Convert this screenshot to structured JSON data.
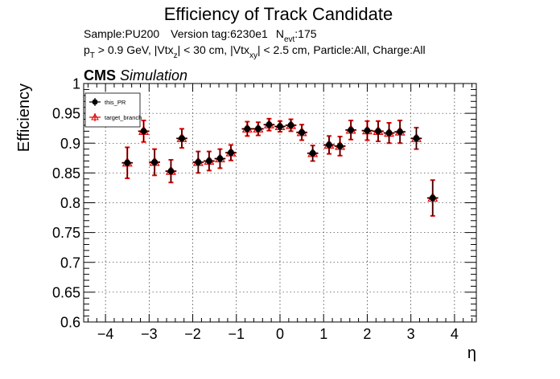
{
  "chart_data": {
    "type": "scatter",
    "title": "Efficiency of Track Candidate",
    "info": {
      "sample": "Sample:PU200",
      "version": "Version tag:6230e1",
      "nevt_prefix": "N",
      "nevt_sub": "evt",
      "nevt_value": ":175",
      "pt_prefix": "p",
      "pt_sub": "T",
      "pt_cut": " > 0.9 GeV, |Vtx",
      "vtxz_sub": "z",
      "vtxz_cut": "| < 30 cm, |Vtx",
      "vtxxy_sub": "xy",
      "vtxxy_cut": "| < 2.5 cm, Particle:All, Charge:All"
    },
    "cms_label": "CMS",
    "sim_label": "Simulation",
    "xlabel": "η",
    "ylabel": "Efficiency",
    "xlim": [
      -4.5,
      4.5
    ],
    "ylim": [
      0.6,
      1.0
    ],
    "xticks": [
      -4,
      -3,
      -2,
      -1,
      0,
      1,
      2,
      3,
      4
    ],
    "xtick_labels": [
      "−4",
      "−3",
      "−2",
      "−1",
      "0",
      "1",
      "2",
      "3",
      "4"
    ],
    "yticks": [
      0.6,
      0.65,
      0.7,
      0.75,
      0.8,
      0.85,
      0.9,
      0.95,
      1.0
    ],
    "ytick_labels": [
      "0.6",
      "0.65",
      "0.7",
      "0.75",
      "0.8",
      "0.85",
      "0.9",
      "0.95",
      "1"
    ],
    "grid": true,
    "legend_position": "top-left",
    "bin_half_width": 0.125,
    "series": [
      {
        "name": "this_PR",
        "color": "#000000",
        "marker": "filled-circle",
        "x": [
          -3.5,
          -3.125,
          -2.875,
          -2.5,
          -2.25,
          -1.875,
          -1.625,
          -1.375,
          -1.125,
          -0.75,
          -0.5,
          -0.25,
          0.0,
          0.25,
          0.5,
          0.75,
          1.125,
          1.375,
          1.625,
          2.0,
          2.25,
          2.5,
          2.75,
          3.125,
          3.5
        ],
        "y": [
          0.867,
          0.92,
          0.868,
          0.853,
          0.908,
          0.868,
          0.87,
          0.874,
          0.884,
          0.924,
          0.924,
          0.931,
          0.928,
          0.93,
          0.918,
          0.883,
          0.897,
          0.895,
          0.922,
          0.921,
          0.92,
          0.917,
          0.919,
          0.908,
          0.808
        ],
        "err": [
          0.026,
          0.018,
          0.022,
          0.019,
          0.016,
          0.018,
          0.016,
          0.016,
          0.013,
          0.012,
          0.011,
          0.01,
          0.009,
          0.01,
          0.013,
          0.013,
          0.015,
          0.016,
          0.016,
          0.016,
          0.017,
          0.017,
          0.019,
          0.018,
          0.03
        ]
      },
      {
        "name": "target_branch",
        "color": "#e00000",
        "marker": "open-triangle",
        "x": [
          -3.5,
          -3.125,
          -2.875,
          -2.5,
          -2.25,
          -1.875,
          -1.625,
          -1.375,
          -1.125,
          -0.75,
          -0.5,
          -0.25,
          0.0,
          0.25,
          0.5,
          0.75,
          1.125,
          1.375,
          1.625,
          2.0,
          2.25,
          2.5,
          2.75,
          3.125,
          3.5
        ],
        "y": [
          0.867,
          0.92,
          0.868,
          0.853,
          0.908,
          0.868,
          0.87,
          0.874,
          0.884,
          0.924,
          0.924,
          0.931,
          0.928,
          0.93,
          0.918,
          0.883,
          0.897,
          0.895,
          0.922,
          0.921,
          0.92,
          0.917,
          0.919,
          0.908,
          0.808
        ],
        "err": [
          0.026,
          0.018,
          0.022,
          0.019,
          0.016,
          0.018,
          0.016,
          0.016,
          0.013,
          0.012,
          0.011,
          0.01,
          0.009,
          0.01,
          0.013,
          0.013,
          0.015,
          0.016,
          0.016,
          0.016,
          0.017,
          0.017,
          0.019,
          0.018,
          0.03
        ]
      }
    ]
  }
}
